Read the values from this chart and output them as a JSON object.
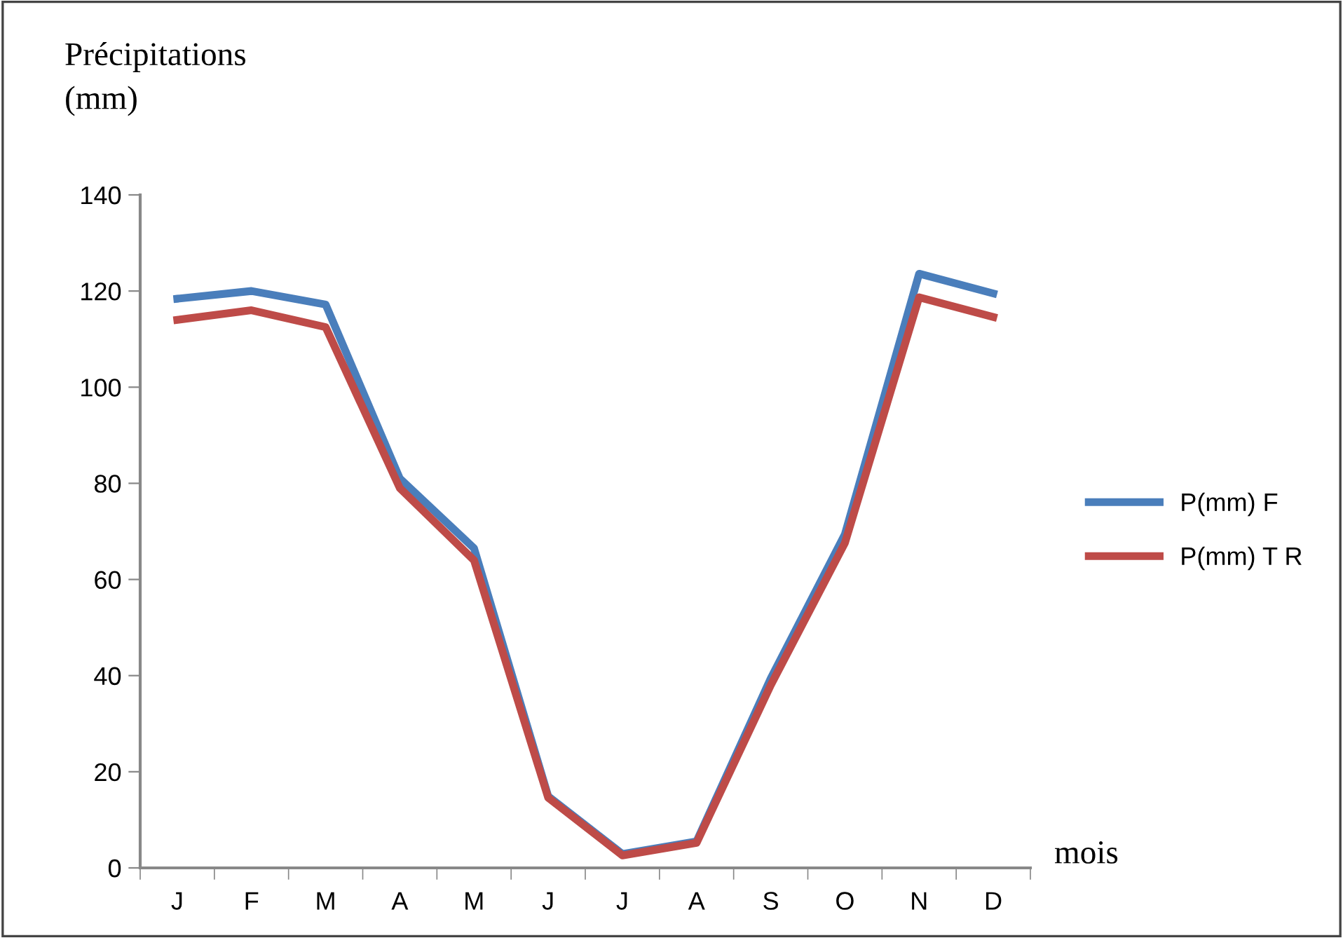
{
  "chart_data": {
    "type": "line",
    "xlabel": "mois",
    "ylabel": "Précipitations\n(mm)",
    "categories": [
      "J",
      "F",
      "M",
      "A",
      "M",
      "J",
      "J",
      "A",
      "S",
      "O",
      "N",
      "D"
    ],
    "series": [
      {
        "name": "P(mm) F",
        "color": "#4a7ebb",
        "values": [
          118.4,
          120,
          117.2,
          81,
          66.5,
          14.9,
          2.9,
          5.5,
          39.4,
          69.4,
          123.6,
          119.5
        ]
      },
      {
        "name": "P(mm) T R",
        "color": "#be4b48",
        "values": [
          114,
          116,
          112.5,
          79,
          64,
          14.6,
          2.6,
          5.2,
          38,
          67.6,
          118.7,
          114.6
        ]
      }
    ],
    "ylim": [
      0,
      140
    ],
    "yticks": [
      0,
      20,
      40,
      60,
      80,
      100,
      120,
      140
    ],
    "grid": false,
    "legend": "right",
    "marker": "none",
    "line_style": "solid"
  }
}
